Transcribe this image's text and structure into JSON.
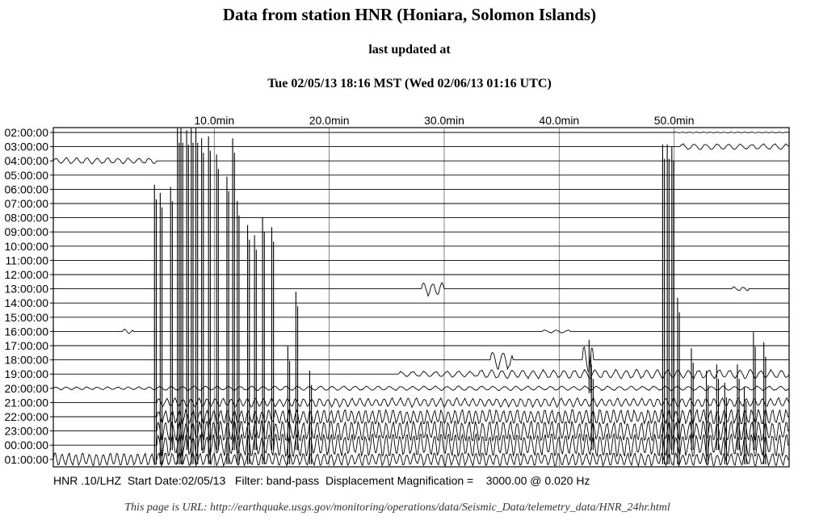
{
  "page": {
    "title": "Data from station HNR (Honiara, Solomon Islands)",
    "updated_label": "last updated at",
    "updated_time": "Tue 02/05/13 18:16 MST (Wed 02/06/13 01:16 UTC)",
    "url_line": "This page is URL: http://earthquake.usgs.gov/monitoring/operations/data/Seismic_Data/telemetry_data/HNR_24hr.html"
  },
  "chart_data": {
    "type": "line",
    "chart_kind": "helicorder seismogram",
    "x_ticks": [
      "10.0min",
      "20.0min",
      "30.0min",
      "40.0min",
      "50.0min"
    ],
    "x_tick_values": [
      10,
      20,
      30,
      40,
      50
    ],
    "xlim": [
      -4,
      60
    ],
    "row_labels": [
      "02:00:00",
      "03:00:00",
      "04:00:00",
      "05:00:00",
      "06:00:00",
      "07:00:00",
      "08:00:00",
      "09:00:00",
      "10:00:00",
      "11:00:00",
      "12:00:00",
      "13:00:00",
      "14:00:00",
      "15:00:00",
      "16:00:00",
      "17:00:00",
      "18:00:00",
      "19:00:00",
      "20:00:00",
      "21:00:00",
      "22:00:00",
      "23:00:00",
      "00:00:00",
      "01:00:00"
    ],
    "grid": true,
    "footer": {
      "station": "HNR .10/LHZ",
      "start_date": "Start Date:02/05/13",
      "filter": "Filter: band-pass",
      "magnification_label": "Displacement Magnification =",
      "magnification": "3000.00 @ 0.020 Hz"
    },
    "events": [
      {
        "row": 0,
        "start": 50,
        "end": 60,
        "amp": 0.5,
        "period": 0.3
      },
      {
        "row": 1,
        "start": 50.5,
        "end": 60,
        "amp": 4,
        "period": 0.5
      },
      {
        "row": 2,
        "start": -4,
        "end": 5,
        "amp": 4,
        "period": 0.45
      },
      {
        "row": 11,
        "start": 28,
        "end": 30,
        "amp": 9,
        "period": 0.4
      },
      {
        "row": 11,
        "start": 55,
        "end": 56.5,
        "amp": 3,
        "period": 0.4
      },
      {
        "row": 14,
        "start": 2,
        "end": 3,
        "amp": 3,
        "period": 0.4
      },
      {
        "row": 14,
        "start": 38.5,
        "end": 41,
        "amp": 2,
        "period": 0.5
      },
      {
        "row": 16,
        "start": 34,
        "end": 36,
        "amp": 14,
        "period": 0.45
      },
      {
        "row": 16,
        "start": 42,
        "end": 43,
        "amp": 22,
        "period": 0.35
      },
      {
        "row": 17,
        "start": 26,
        "end": 33,
        "amp": 4,
        "period": 0.5
      },
      {
        "row": 17,
        "start": 33,
        "end": 60,
        "amp": 6,
        "period": 0.45
      },
      {
        "row": 18,
        "start": -4,
        "end": 5,
        "amp": 2,
        "period": 0.45
      },
      {
        "row": 18,
        "start": 5,
        "end": 60,
        "amp": 3,
        "period": 0.5
      },
      {
        "row": 19,
        "start": 5,
        "end": 60,
        "amp": 6,
        "period": 0.35
      },
      {
        "row": 20,
        "start": 5,
        "end": 60,
        "amp": 10,
        "period": 0.3
      },
      {
        "row": 21,
        "start": 5,
        "end": 60,
        "amp": 14,
        "period": 0.3
      },
      {
        "row": 22,
        "start": 5,
        "end": 60,
        "amp": 16,
        "period": 0.3
      },
      {
        "row": 23,
        "start": -4,
        "end": 60,
        "amp": 9,
        "period": 0.3
      }
    ],
    "spikes": [
      {
        "row": 23,
        "minute": 4.8,
        "height": 340
      },
      {
        "row": 23,
        "minute": 5.3,
        "height": 330
      },
      {
        "row": 22,
        "minute": 6.2,
        "height": 320
      },
      {
        "row": 23,
        "minute": 6.8,
        "height": 410
      },
      {
        "row": 23,
        "minute": 7.1,
        "height": 410
      },
      {
        "row": 22,
        "minute": 7.6,
        "height": 390
      },
      {
        "row": 23,
        "minute": 8.0,
        "height": 410
      },
      {
        "row": 23,
        "minute": 8.4,
        "height": 410
      },
      {
        "row": 22,
        "minute": 8.9,
        "height": 380
      },
      {
        "row": 23,
        "minute": 9.5,
        "height": 400
      },
      {
        "row": 22,
        "minute": 10.2,
        "height": 360
      },
      {
        "row": 23,
        "minute": 11.1,
        "height": 350
      },
      {
        "row": 22,
        "minute": 11.6,
        "height": 380
      },
      {
        "row": 23,
        "minute": 12.0,
        "height": 320
      },
      {
        "row": 23,
        "minute": 12.9,
        "height": 290
      },
      {
        "row": 22,
        "minute": 13.5,
        "height": 260
      },
      {
        "row": 23,
        "minute": 14.2,
        "height": 300
      },
      {
        "row": 22,
        "minute": 15.0,
        "height": 270
      },
      {
        "row": 23,
        "minute": 16.4,
        "height": 140
      },
      {
        "row": 22,
        "minute": 17.1,
        "height": 190
      },
      {
        "row": 23,
        "minute": 18.3,
        "height": 110
      },
      {
        "row": 18,
        "minute": 42.6,
        "height": 60
      },
      {
        "row": 22,
        "minute": 42.8,
        "height": 100
      },
      {
        "row": 23,
        "minute": 49.0,
        "height": 390
      },
      {
        "row": 23,
        "minute": 49.4,
        "height": 390
      },
      {
        "row": 22,
        "minute": 49.8,
        "height": 370
      },
      {
        "row": 23,
        "minute": 50.3,
        "height": 200
      },
      {
        "row": 22,
        "minute": 51.5,
        "height": 120
      },
      {
        "row": 23,
        "minute": 52.8,
        "height": 110
      },
      {
        "row": 22,
        "minute": 53.7,
        "height": 100
      },
      {
        "row": 23,
        "minute": 54.4,
        "height": 95
      },
      {
        "row": 22,
        "minute": 55.5,
        "height": 100
      },
      {
        "row": 23,
        "minute": 56.1,
        "height": 90
      },
      {
        "row": 22,
        "minute": 56.9,
        "height": 140
      },
      {
        "row": 23,
        "minute": 57.8,
        "height": 145
      }
    ]
  }
}
